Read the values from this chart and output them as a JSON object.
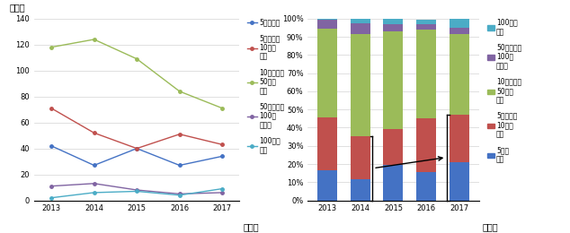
{
  "years": [
    2013,
    2014,
    2015,
    2016,
    2017
  ],
  "line_data": {
    "under5": [
      42,
      27,
      40,
      27,
      34
    ],
    "5to10": [
      71,
      52,
      40,
      51,
      43
    ],
    "10to50": [
      118,
      124,
      109,
      84,
      71
    ],
    "50to100": [
      11,
      13,
      8,
      5,
      6
    ],
    "over100": [
      2,
      6,
      7,
      4,
      9
    ]
  },
  "bar_data": {
    "under5": [
      0.166,
      0.118,
      0.196,
      0.157,
      0.209
    ],
    "5to10": [
      0.293,
      0.236,
      0.196,
      0.296,
      0.264
    ],
    "10to50": [
      0.488,
      0.563,
      0.539,
      0.488,
      0.442
    ],
    "50to100": [
      0.045,
      0.059,
      0.039,
      0.029,
      0.037
    ],
    "over100": [
      0.008,
      0.027,
      0.034,
      0.023,
      0.055
    ]
  },
  "colors": {
    "under5": "#4472c4",
    "5to10": "#c0504d",
    "10to50": "#9bbb59",
    "50to100": "#8064a2",
    "over100": "#4bacc6"
  },
  "left_ylabel": "（件）",
  "left_xlabel": "（年）",
  "right_xlabel": "（年）",
  "legend_left": {
    "under5": "5億円未満",
    "5to10": "5億円以上\n10億円\n未満",
    "10to50": "10億円以上\n50億円\n未満",
    "50to100": "50億円以上\n100億\n円未満",
    "over100": "100億円\n以上"
  },
  "legend_right": {
    "over100": "100億円\n以上",
    "50to100": "50億円以上\n100億\n円未満",
    "10to50": "10億円以上\n50億円\n未満",
    "5to10": "5億円以上\n10億円\n未満",
    "under5": "5億円\n未満"
  },
  "ylim_left": [
    0,
    140
  ],
  "ylim_right": [
    0,
    1.0
  ],
  "bracket_year_idx": 1,
  "arrow_year_idx": 4
}
